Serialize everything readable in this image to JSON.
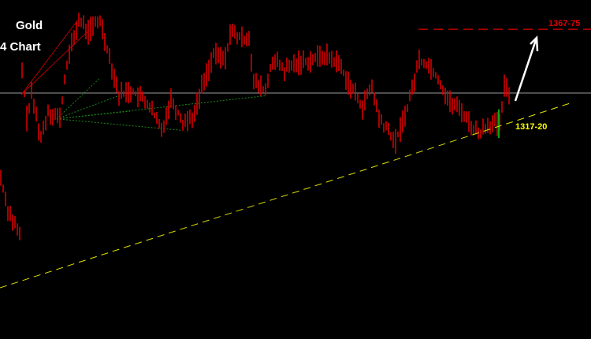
{
  "chart_data": {
    "type": "line",
    "title_lines": [
      "Gold",
      "4 Chart"
    ],
    "ylim": [
      1206.2,
      1383.0
    ],
    "xlim": [
      0,
      250
    ],
    "grid": false,
    "price_series": [
      [
        0,
        1290.5
      ],
      [
        3,
        1274.0
      ],
      [
        8,
        1259.7
      ],
      [
        9,
        1346.0
      ],
      [
        11,
        1321.3
      ],
      [
        13,
        1333.6
      ],
      [
        17,
        1311.0
      ],
      [
        20,
        1325.4
      ],
      [
        25,
        1321.3
      ],
      [
        28,
        1350.1
      ],
      [
        33,
        1372.7
      ],
      [
        37,
        1366.5
      ],
      [
        42,
        1372.7
      ],
      [
        45,
        1358.3
      ],
      [
        50,
        1333.6
      ],
      [
        55,
        1335.7
      ],
      [
        62,
        1329.5
      ],
      [
        68,
        1315.1
      ],
      [
        72,
        1331.6
      ],
      [
        77,
        1319.3
      ],
      [
        82,
        1323.4
      ],
      [
        85,
        1337.7
      ],
      [
        90,
        1354.2
      ],
      [
        95,
        1352.1
      ],
      [
        97,
        1366.5
      ],
      [
        102,
        1362.4
      ],
      [
        105,
        1364.5
      ],
      [
        107,
        1339.8
      ],
      [
        112,
        1335.7
      ],
      [
        115,
        1352.1
      ],
      [
        120,
        1346.0
      ],
      [
        125,
        1350.1
      ],
      [
        132,
        1352.1
      ],
      [
        137,
        1354.2
      ],
      [
        143,
        1350.1
      ],
      [
        148,
        1337.7
      ],
      [
        153,
        1327.5
      ],
      [
        157,
        1337.7
      ],
      [
        160,
        1321.3
      ],
      [
        167,
        1309.0
      ],
      [
        170,
        1319.3
      ],
      [
        173,
        1331.6
      ],
      [
        177,
        1352.1
      ],
      [
        182,
        1348.0
      ],
      [
        185,
        1341.9
      ],
      [
        190,
        1329.5
      ],
      [
        195,
        1325.4
      ],
      [
        198,
        1319.3
      ],
      [
        202,
        1313.1
      ],
      [
        205,
        1317.2
      ],
      [
        208,
        1319.3
      ],
      [
        211,
        1317.2
      ],
      [
        213,
        1337.7
      ],
      [
        215,
        1334.3
      ]
    ],
    "horizontal_line": {
      "price": 1334.5,
      "color": "#9a9a9a"
    },
    "target_line": {
      "price": 1367.75,
      "start_bar": 177,
      "color": "#e00000",
      "label": "1367-75"
    },
    "support_trendline": {
      "from": [
        0,
        1232.9
      ],
      "to": [
        242,
        1329.5
      ],
      "color": "#e0e000",
      "label": "1317-20"
    },
    "arrow": {
      "from": [
        218,
        1330.4
      ],
      "to": [
        227,
        1363.3
      ],
      "color": "#ffffff"
    },
    "candle_color": "#e00000"
  }
}
